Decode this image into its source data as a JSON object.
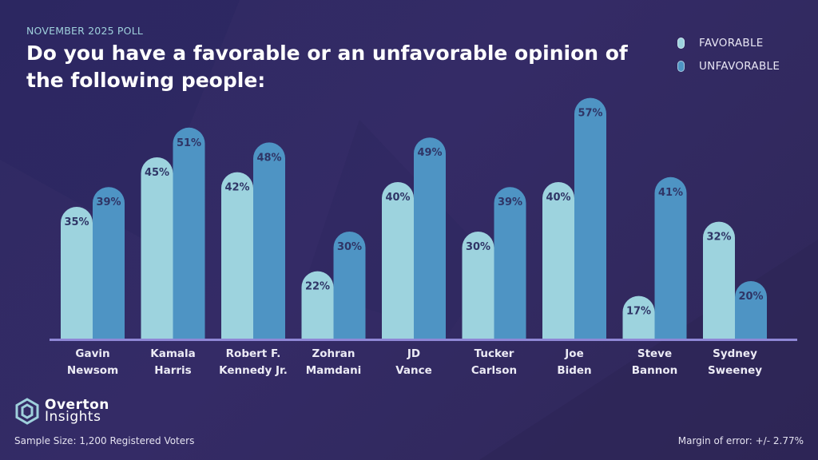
{
  "header": {
    "subtitle": "NOVEMBER 2025 POLL",
    "title": "Do you have a favorable or an unfavorable opinion of the following people:"
  },
  "legend": [
    {
      "label": "FAVORABLE",
      "color": "#9dd3de"
    },
    {
      "label": "UNFAVORABLE",
      "color": "#4e94c4"
    }
  ],
  "chart_data": {
    "type": "bar",
    "title": "Do you have a favorable or an unfavorable opinion of the following people:",
    "xlabel": "",
    "ylabel": "",
    "ylim": [
      0,
      60
    ],
    "grid": false,
    "legend_position": "top-right",
    "categories": [
      [
        "Gavin",
        "Newsom"
      ],
      [
        "Kamala",
        "Harris"
      ],
      [
        "Robert F.",
        "Kennedy Jr."
      ],
      [
        "Zohran",
        "Mamdani"
      ],
      [
        "JD",
        "Vance"
      ],
      [
        "Tucker",
        "Carlson"
      ],
      [
        "Joe",
        "Biden"
      ],
      [
        "Steve",
        "Bannon"
      ],
      [
        "Sydney",
        "Sweeney"
      ]
    ],
    "series": [
      {
        "name": "FAVORABLE",
        "color": "#9dd3de",
        "values": [
          35,
          45,
          42,
          22,
          40,
          30,
          40,
          17,
          32
        ],
        "labels": [
          "35%",
          "45%",
          "42%",
          "22%",
          "40%",
          "30%",
          "40%",
          "17%",
          "32%"
        ]
      },
      {
        "name": "UNFAVORABLE",
        "color": "#4e94c4",
        "values": [
          39,
          51,
          48,
          30,
          49,
          39,
          57,
          41,
          20
        ],
        "labels": [
          "39%",
          "51%",
          "48%",
          "30%",
          "49%",
          "39%",
          "57%",
          "41%",
          "20%"
        ]
      }
    ]
  },
  "footer": {
    "logo_line1": "Overton",
    "logo_line2": "Insights",
    "sample_label": "Sample Size:",
    "sample_value": "1,200 Registered Voters",
    "margin_of_error": "Margin of error: +/- 2.77%"
  }
}
